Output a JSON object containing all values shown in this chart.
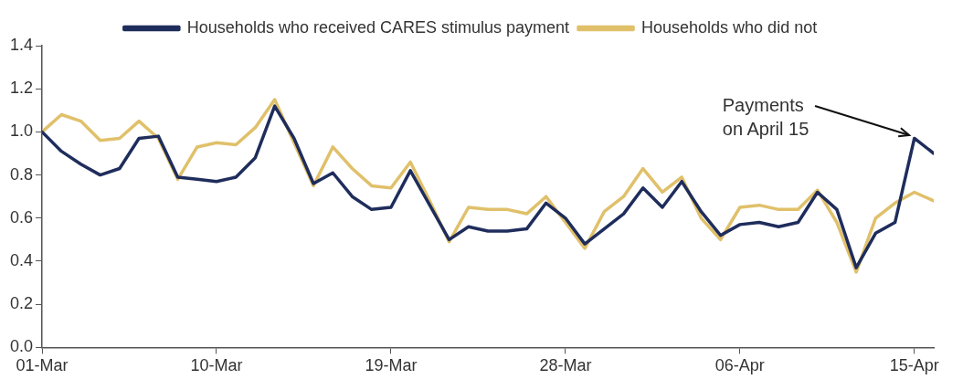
{
  "chart_data": {
    "type": "line",
    "x": [
      "--03-01",
      "--03-02",
      "--03-03",
      "--03-04",
      "--03-05",
      "--03-06",
      "--03-07",
      "--03-08",
      "--03-09",
      "--03-10",
      "--03-11",
      "--03-12",
      "--03-13",
      "--03-14",
      "--03-15",
      "--03-16",
      "--03-17",
      "--03-18",
      "--03-19",
      "--03-20",
      "--03-21",
      "--03-22",
      "--03-23",
      "--03-24",
      "--03-25",
      "--03-26",
      "--03-27",
      "--03-28",
      "--03-29",
      "--03-30",
      "--03-31",
      "--04-01",
      "--04-02",
      "--04-03",
      "--04-04",
      "--04-05",
      "--04-06",
      "--04-07",
      "--04-08",
      "--04-09",
      "--04-10",
      "--04-11",
      "--04-12",
      "--04-13",
      "--04-14",
      "--04-15",
      "--04-16"
    ],
    "series": [
      {
        "name": "Households who received CARES stimulus payment",
        "color": "#1f2d5c",
        "values": [
          1.0,
          0.91,
          0.85,
          0.8,
          0.83,
          0.97,
          0.98,
          0.79,
          0.78,
          0.77,
          0.79,
          0.88,
          1.12,
          0.97,
          0.76,
          0.81,
          0.7,
          0.64,
          0.65,
          0.82,
          0.66,
          0.5,
          0.56,
          0.54,
          0.54,
          0.55,
          0.67,
          0.6,
          0.48,
          0.55,
          0.62,
          0.74,
          0.65,
          0.77,
          0.63,
          0.52,
          0.57,
          0.58,
          0.56,
          0.58,
          0.72,
          0.64,
          0.37,
          0.53,
          0.58,
          0.97,
          0.9
        ]
      },
      {
        "name": "Households who did not",
        "color": "#e0c06a",
        "values": [
          1.0,
          1.08,
          1.05,
          0.96,
          0.97,
          1.05,
          0.97,
          0.78,
          0.93,
          0.95,
          0.94,
          1.02,
          1.15,
          0.95,
          0.75,
          0.93,
          0.83,
          0.75,
          0.74,
          0.86,
          0.68,
          0.49,
          0.65,
          0.64,
          0.64,
          0.62,
          0.7,
          0.58,
          0.46,
          0.63,
          0.7,
          0.83,
          0.72,
          0.79,
          0.6,
          0.5,
          0.65,
          0.66,
          0.64,
          0.64,
          0.73,
          0.58,
          0.35,
          0.6,
          0.67,
          0.72,
          0.68
        ]
      }
    ],
    "xlim": [
      "--03-01",
      "--04-16"
    ],
    "xticks": [
      {
        "value": "--03-01",
        "label": "01-Mar"
      },
      {
        "value": "--03-10",
        "label": "10-Mar"
      },
      {
        "value": "--03-19",
        "label": "19-Mar"
      },
      {
        "value": "--03-28",
        "label": "28-Mar"
      },
      {
        "value": "--04-06",
        "label": "06-Apr"
      },
      {
        "value": "--04-15",
        "label": "15-Apr"
      }
    ],
    "ylim": [
      0,
      1.4
    ],
    "yticks": [
      {
        "value": 0,
        "label": "0.0"
      },
      {
        "value": 0.2,
        "label": "0.2"
      },
      {
        "value": 0.4,
        "label": "0.4"
      },
      {
        "value": 0.6,
        "label": "0.6"
      },
      {
        "value": 0.8,
        "label": "0.8"
      },
      {
        "value": 1,
        "label": "1.0"
      },
      {
        "value": 1.2,
        "label": "1.2"
      },
      {
        "value": 1.4,
        "label": "1.4"
      }
    ],
    "annotations": [
      {
        "text": "Payments on April 15",
        "x": "--04-15",
        "y": 0.97
      }
    ],
    "grid": false,
    "legend": "top",
    "marker": "none",
    "line_style": "solid"
  }
}
